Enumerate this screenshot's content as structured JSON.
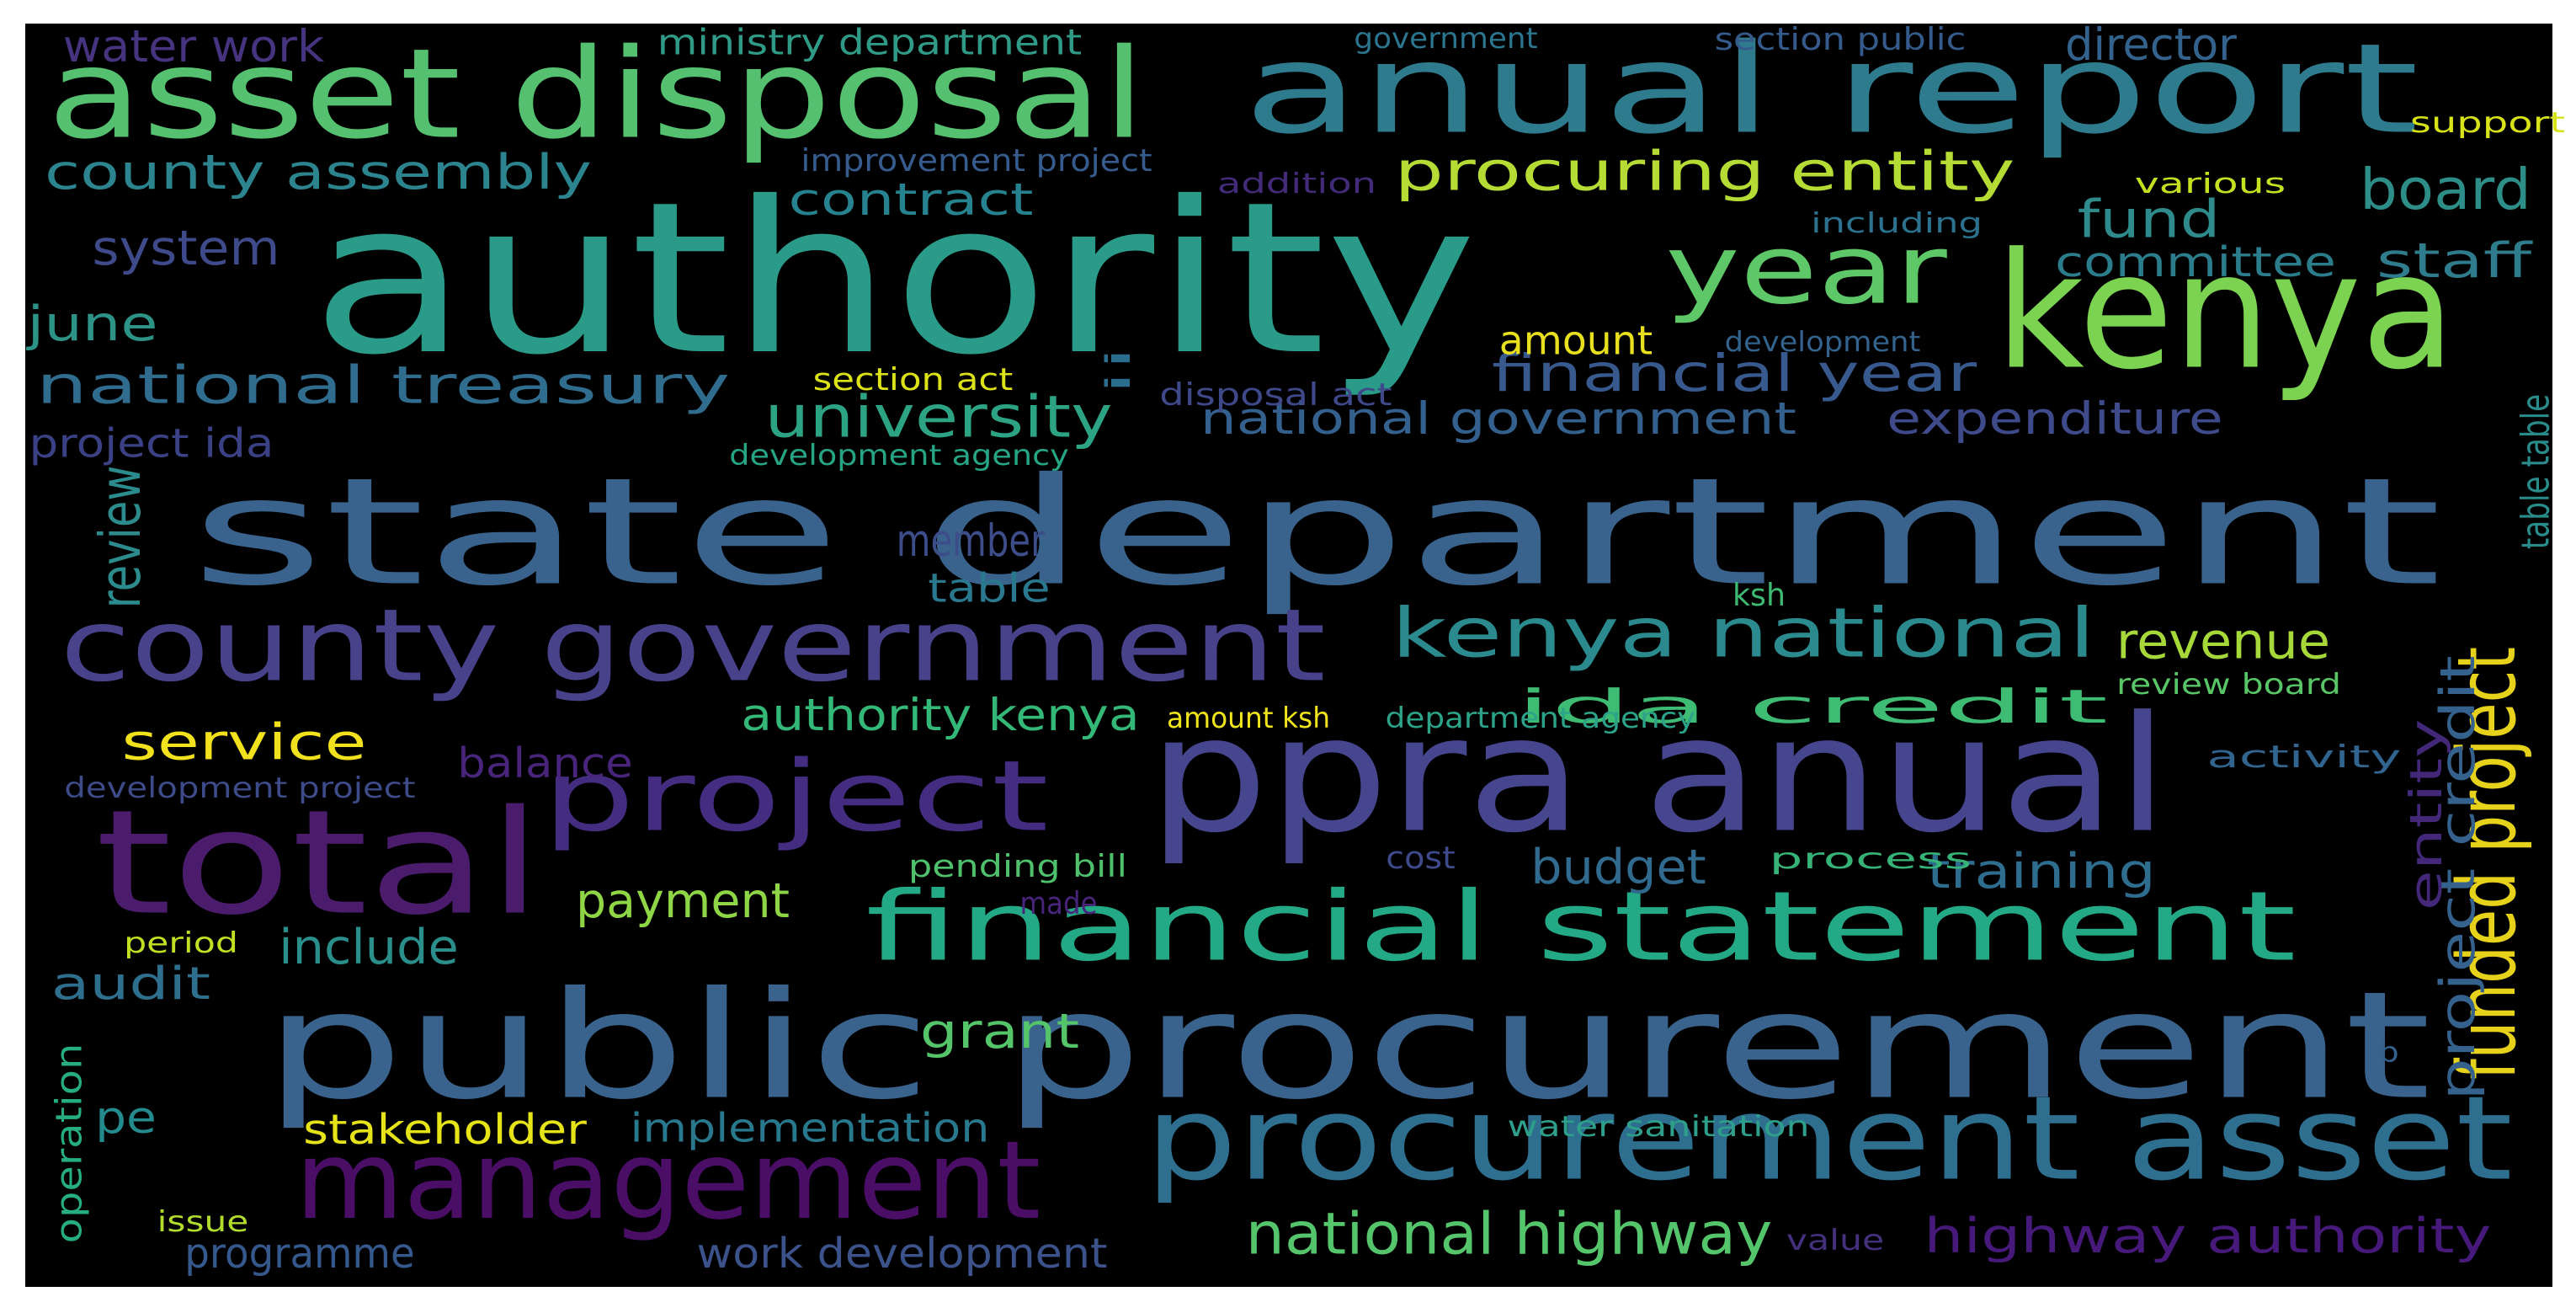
{
  "words": [
    {
      "text": "state department",
      "color": "#39638c"
    },
    {
      "text": "public procurement",
      "color": "#39638c"
    },
    {
      "text": "authority",
      "color": "#2a9a89"
    },
    {
      "text": "anual report",
      "color": "#2f7b8e"
    },
    {
      "text": "asset disposal",
      "color": "#54c070"
    },
    {
      "text": "ppra anual",
      "color": "#46468e"
    },
    {
      "text": "county government",
      "color": "#48428b"
    },
    {
      "text": "total",
      "color": "#4b1c6c"
    },
    {
      "text": "kenya",
      "color": "#7cd251"
    },
    {
      "text": "procurement asset",
      "color": "#2e6f8f"
    },
    {
      "text": "financial statement",
      "color": "#24a986"
    },
    {
      "text": "management",
      "color": "#4a0e66"
    },
    {
      "text": "project",
      "color": "#442d80"
    },
    {
      "text": "year",
      "color": "#5ec768"
    },
    {
      "text": "kenya national",
      "color": "#2a8a8d"
    },
    {
      "text": "procuring entity",
      "color": "#b5dc34"
    },
    {
      "text": "national highway",
      "color": "#55c56b"
    },
    {
      "text": "highway authority",
      "color": "#46197a"
    },
    {
      "text": "county assembly",
      "color": "#2c848e"
    },
    {
      "text": "national treasury",
      "color": "#2f6c8e"
    },
    {
      "text": "financial year",
      "color": "#38598d"
    },
    {
      "text": "national government",
      "color": "#33608d"
    },
    {
      "text": "funded project",
      "color": "#e7d21b"
    },
    {
      "text": "project credit",
      "color": "#34628c"
    },
    {
      "text": "ida credit",
      "color": "#3fbc74"
    },
    {
      "text": "authority kenya",
      "color": "#33b878"
    },
    {
      "text": "university",
      "color": "#2ca383"
    },
    {
      "text": "contract",
      "color": "#26828e"
    },
    {
      "text": "expenditure",
      "color": "#3f4a8a"
    },
    {
      "text": "fund",
      "color": "#2e8a8b"
    },
    {
      "text": "board",
      "color": "#2d8e88"
    },
    {
      "text": "staff",
      "color": "#2f7c8d"
    },
    {
      "text": "committee",
      "color": "#2b7d8c"
    },
    {
      "text": "revenue",
      "color": "#a7d839"
    },
    {
      "text": "service",
      "color": "#f2e21d"
    },
    {
      "text": "training",
      "color": "#2e6d8e"
    },
    {
      "text": "budget",
      "color": "#306a8e"
    },
    {
      "text": "payment",
      "color": "#8ed645"
    },
    {
      "text": "grant",
      "color": "#54c569"
    },
    {
      "text": "system",
      "color": "#3e4a89"
    },
    {
      "text": "june",
      "color": "#2c9386"
    },
    {
      "text": "audit",
      "color": "#2f6f8e"
    },
    {
      "text": "include",
      "color": "#2a8e8b"
    },
    {
      "text": "stakeholder",
      "color": "#e6e419"
    },
    {
      "text": "implementation",
      "color": "#28788e"
    },
    {
      "text": "programme",
      "color": "#35598c"
    },
    {
      "text": "work development",
      "color": "#3b528b"
    },
    {
      "text": "member",
      "color": "#3d4d8a"
    },
    {
      "text": "table",
      "color": "#2a788e"
    },
    {
      "text": "balance",
      "color": "#48257a"
    },
    {
      "text": "entity",
      "color": "#43287a"
    },
    {
      "text": "project ida",
      "color": "#3a4185"
    },
    {
      "text": "review",
      "color": "#2c8b8c"
    },
    {
      "text": "amount",
      "color": "#e8e01f"
    },
    {
      "text": "pe",
      "color": "#238a8d"
    },
    {
      "text": "water work",
      "color": "#463480"
    },
    {
      "text": "ministry department",
      "color": "#2f9b87"
    },
    {
      "text": "improvement project",
      "color": "#365c8d"
    },
    {
      "text": "government",
      "color": "#2b758e"
    },
    {
      "text": "section public",
      "color": "#355b8d"
    },
    {
      "text": "director",
      "color": "#33638d"
    },
    {
      "text": "support",
      "color": "#d7e219"
    },
    {
      "text": "various",
      "color": "#c5e021"
    },
    {
      "text": "addition",
      "color": "#442b7a"
    },
    {
      "text": "including",
      "color": "#2c728e"
    },
    {
      "text": "development",
      "color": "#33638d"
    },
    {
      "text": "section act",
      "color": "#dbe318"
    },
    {
      "text": "ii",
      "color": "#2b6d8e"
    },
    {
      "text": "disposal act",
      "color": "#3f4889"
    },
    {
      "text": "development agency",
      "color": "#26a585"
    },
    {
      "text": "table table",
      "color": "#2a8b8b"
    },
    {
      "text": "review board",
      "color": "#58c666"
    },
    {
      "text": "ksh",
      "color": "#3dba72"
    },
    {
      "text": "amount ksh",
      "color": "#f0e41d"
    },
    {
      "text": "department agency",
      "color": "#2ca389"
    },
    {
      "text": "activity",
      "color": "#31648e"
    },
    {
      "text": "development project",
      "color": "#3d4b89"
    },
    {
      "text": "pending bill",
      "color": "#4fc16c"
    },
    {
      "text": "cost",
      "color": "#3e4a89"
    },
    {
      "text": "process",
      "color": "#36b478"
    },
    {
      "text": "made",
      "color": "#48257a"
    },
    {
      "text": "period",
      "color": "#c2df23"
    },
    {
      "text": "operation",
      "color": "#26ad81"
    },
    {
      "text": "issue",
      "color": "#b3dd2c"
    },
    {
      "text": "water sanitation",
      "color": "#2e9f8a"
    },
    {
      "text": "value",
      "color": "#45307d"
    },
    {
      "text": "b",
      "color": "#34608d"
    }
  ]
}
